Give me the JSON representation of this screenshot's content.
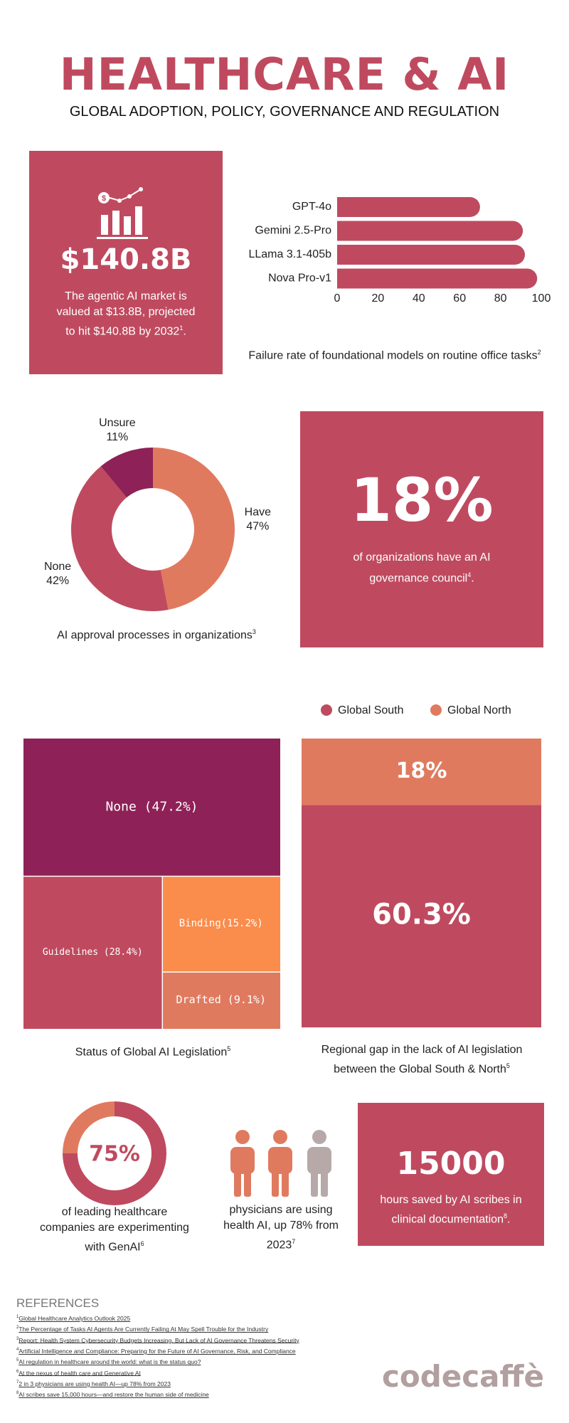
{
  "header": {
    "title": "HEALTHCARE & AI",
    "subtitle": "GLOBAL ADOPTION, POLICY, GOVERNANCE AND REGULATION"
  },
  "stats": [
    {
      "value": "$140.8B",
      "text": "The agentic AI market is valued at $13.8B, projected to hit $140.8B by 2032",
      "note": "1",
      "tail": "."
    },
    {
      "value": "18%",
      "text": "of organizations have an AI governance council",
      "note": "4",
      "tail": "."
    },
    {
      "value": "15000",
      "text": "hours saved by AI scribes in clinical documentation",
      "note": "8",
      "tail": "."
    }
  ],
  "physicians": {
    "text": "physicians are using health AI, up 78% from 2023",
    "note": "7"
  },
  "chart_data": [
    {
      "type": "bar",
      "orientation": "horizontal",
      "title": "Failure rate of foundational models on routine office tasks",
      "note": "2",
      "categories": [
        "GPT-4o",
        "Gemini 2.5-Pro",
        "LLama 3.1-405b",
        "Nova Pro-v1"
      ],
      "values": [
        70,
        91,
        92,
        98
      ],
      "color": "#bf4a5f",
      "xlim": [
        0,
        100
      ],
      "xticks": [
        0,
        20,
        40,
        60,
        80,
        100
      ]
    },
    {
      "type": "donut",
      "title": "AI approval processes in organizations",
      "note": "3",
      "categories": [
        "Have",
        "None",
        "Unsure"
      ],
      "values": [
        47,
        42,
        11
      ],
      "value_labels": [
        "47%",
        "42%",
        "11%"
      ],
      "colors": [
        "#e07a5f",
        "#bf4a5f",
        "#8e2157"
      ]
    },
    {
      "type": "treemap",
      "title": "Status of Global AI Legislation",
      "note": "5",
      "values": [
        47.2,
        28.4,
        15.2,
        9.1
      ],
      "value_labels": [
        "None (47.2%)",
        "Guidelines (28.4%)",
        "Binding(15.2%)",
        "Drafted (9.1%)"
      ],
      "colors": [
        "#8e2157",
        "#bf4a5f",
        "#fa8c4c",
        "#e07a5f"
      ]
    },
    {
      "type": "stacked-bar",
      "title": "Regional gap in the lack of AI legislation between the Global South & North",
      "note": "5",
      "series": [
        {
          "name": "Global South",
          "color": "#bf4a5f",
          "values": [
            60.3
          ],
          "value_labels": [
            "60.3%"
          ]
        },
        {
          "name": "Global North",
          "color": "#e07a5f",
          "values": [
            18
          ],
          "value_labels": [
            "18%"
          ]
        }
      ]
    },
    {
      "type": "progress-donut",
      "text": "of leading healthcare companies are experimenting with GenAI",
      "note": "6",
      "value": 75,
      "value_label": "75%",
      "color": "#bf4a5f",
      "track_color": "#e07a5f"
    }
  ],
  "references": {
    "title": "REFERENCES",
    "items": [
      {
        "note": "1",
        "text": "Global Healthcare Analytics Outlook 2025"
      },
      {
        "note": "2",
        "text": "The Percentage of Tasks AI Agents Are Currently Failing At May Spell Trouble for the Industry"
      },
      {
        "note": "3",
        "text": "Report: Health System Cybersecurity Budgets Increasing, But Lack of AI Governance Threatens Security"
      },
      {
        "note": "4",
        "text": "Artificial Intelligence and Compliance: Preparing for the Future of AI Governance, Risk, and Compliance"
      },
      {
        "note": "5",
        "text": "AI regulation in healthcare around the world: what is the status quo?"
      },
      {
        "note": "6",
        "text": "At the nexus of health care and Generative AI"
      },
      {
        "note": "7",
        "text": "2 in 3 physicians are using health AI—up 78% from 2023"
      },
      {
        "note": "8",
        "text": "AI scribes save 15,000 hours—and restore the human side of medicine"
      }
    ]
  },
  "logo": "codecaffè"
}
